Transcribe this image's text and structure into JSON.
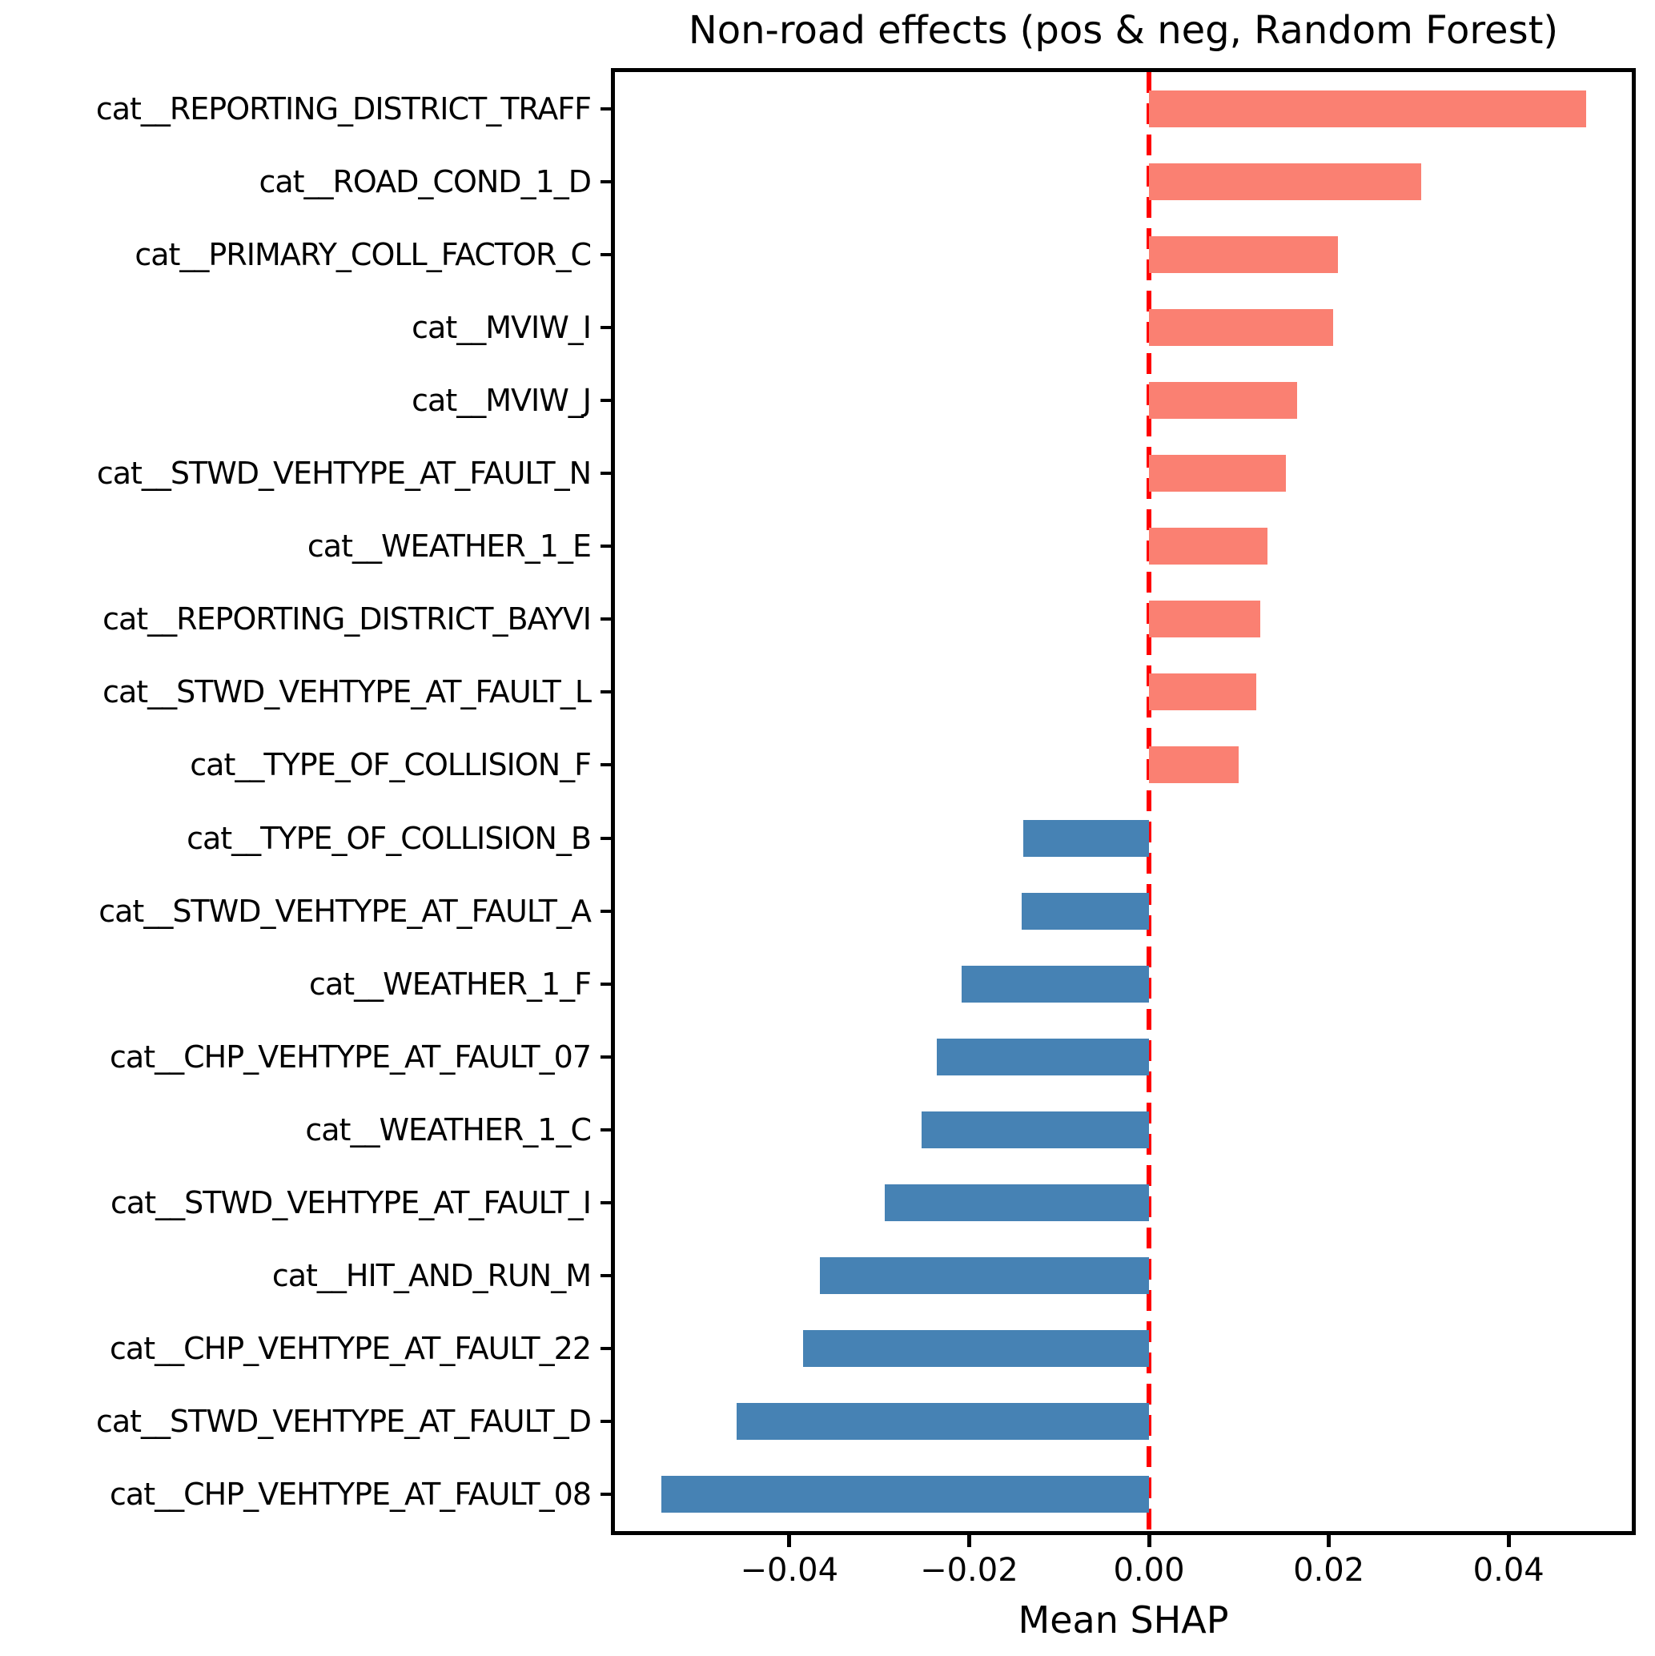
{
  "title": "Non-road effects (pos & neg, Random Forest)",
  "chart_data": {
    "type": "bar",
    "orientation": "horizontal",
    "title": "Non-road effects (pos & neg, Random Forest)",
    "xlabel": "Mean SHAP",
    "ylabel": "",
    "grid": false,
    "legend": null,
    "xlim": [
      -0.0594,
      0.0537
    ],
    "x_ticks": [
      {
        "value": -0.04,
        "label": "−0.04"
      },
      {
        "value": -0.02,
        "label": "−0.02"
      },
      {
        "value": 0.0,
        "label": "0.00"
      },
      {
        "value": 0.02,
        "label": "0.02"
      },
      {
        "value": 0.04,
        "label": "0.04"
      }
    ],
    "zero_line": {
      "value": 0,
      "style": "dashed",
      "color": "#FF0000"
    },
    "categories": [
      "cat__REPORTING_DISTRICT_TRAFF",
      "cat__ROAD_COND_1_D",
      "cat__PRIMARY_COLL_FACTOR_C",
      "cat__MVIW_I",
      "cat__MVIW_J",
      "cat__STWD_VEHTYPE_AT_FAULT_N",
      "cat__WEATHER_1_E",
      "cat__REPORTING_DISTRICT_BAYVI",
      "cat__STWD_VEHTYPE_AT_FAULT_L",
      "cat__TYPE_OF_COLLISION_F",
      "cat__TYPE_OF_COLLISION_B",
      "cat__STWD_VEHTYPE_AT_FAULT_A",
      "cat__WEATHER_1_F",
      "cat__CHP_VEHTYPE_AT_FAULT_07",
      "cat__WEATHER_1_C",
      "cat__STWD_VEHTYPE_AT_FAULT_I",
      "cat__HIT_AND_RUN_M",
      "cat__CHP_VEHTYPE_AT_FAULT_22",
      "cat__STWD_VEHTYPE_AT_FAULT_D",
      "cat__CHP_VEHTYPE_AT_FAULT_08"
    ],
    "values": [
      0.0486,
      0.0303,
      0.021,
      0.0205,
      0.0165,
      0.0152,
      0.0132,
      0.0124,
      0.0119,
      0.01,
      -0.014,
      -0.0142,
      -0.0208,
      -0.0236,
      -0.0253,
      -0.0294,
      -0.0366,
      -0.0385,
      -0.0459,
      -0.0542
    ],
    "colors": {
      "positive": "#FA8072",
      "negative": "#4682B4",
      "zero_line": "#FF0000",
      "axis": "#000000",
      "background": "#FFFFFF"
    }
  }
}
